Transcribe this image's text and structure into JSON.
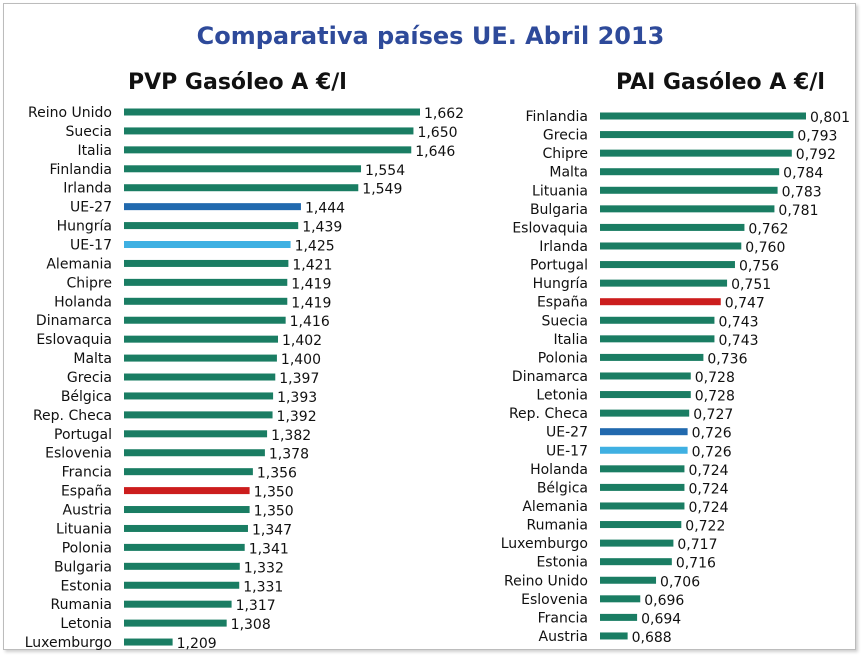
{
  "title": "Comparativa países UE. Abril 2013",
  "colors": {
    "default": "#1a7d63",
    "spain": "#cc1d1d",
    "ue27": "#2169ae",
    "ue17": "#3fb0e2"
  },
  "chart_data": [
    {
      "type": "bar",
      "orientation": "horizontal",
      "title": "PVP Gasóleo A €/l",
      "xlim": [
        1.12,
        1.662
      ],
      "categories": [
        "Reino Unido",
        "Suecia",
        "Italia",
        "Finlandia",
        "Irlanda",
        "UE-27",
        "Hungría",
        "UE-17",
        "Alemania",
        "Chipre",
        "Holanda",
        "Dinamarca",
        "Eslovaquia",
        "Malta",
        "Grecia",
        "Bélgica",
        "Rep. Checa",
        "Portugal",
        "Eslovenia",
        "Francia",
        "España",
        "Austria",
        "Lituania",
        "Polonia",
        "Bulgaria",
        "Estonia",
        "Rumania",
        "Letonia",
        "Luxemburgo"
      ],
      "values": [
        1.662,
        1.65,
        1.646,
        1.554,
        1.549,
        1.444,
        1.439,
        1.425,
        1.421,
        1.419,
        1.419,
        1.416,
        1.402,
        1.4,
        1.397,
        1.393,
        1.392,
        1.382,
        1.378,
        1.356,
        1.35,
        1.35,
        1.347,
        1.341,
        1.332,
        1.331,
        1.317,
        1.308,
        1.209
      ],
      "value_labels": [
        "1,662",
        "1,650",
        "1,646",
        "1,554",
        "1,549",
        "1,444",
        "1,439",
        "1,425",
        "1,421",
        "1,419",
        "1,419",
        "1,416",
        "1,402",
        "1,400",
        "1,397",
        "1,393",
        "1,392",
        "1,382",
        "1,378",
        "1,356",
        "1,350",
        "1,350",
        "1,347",
        "1,341",
        "1,332",
        "1,331",
        "1,317",
        "1,308",
        "1,209"
      ]
    },
    {
      "type": "bar",
      "orientation": "horizontal",
      "title": "PAI Gasóleo A €/l",
      "xlim": [
        0.6705,
        0.801
      ],
      "categories": [
        "Finlandia",
        "Grecia",
        "Chipre",
        "Malta",
        "Lituania",
        "Bulgaria",
        "Eslovaquia",
        "Irlanda",
        "Portugal",
        "Hungría",
        "España",
        "Suecia",
        "Italia",
        "Polonia",
        "Dinamarca",
        "Letonia",
        "Rep. Checa",
        "UE-27",
        "UE-17",
        "Holanda",
        "Bélgica",
        "Alemania",
        "Rumania",
        "Luxemburgo",
        "Estonia",
        "Reino Unido",
        "Eslovenia",
        "Francia",
        "Austria"
      ],
      "values": [
        0.801,
        0.793,
        0.792,
        0.784,
        0.783,
        0.781,
        0.762,
        0.76,
        0.756,
        0.751,
        0.747,
        0.743,
        0.743,
        0.736,
        0.728,
        0.728,
        0.727,
        0.726,
        0.726,
        0.724,
        0.724,
        0.724,
        0.722,
        0.717,
        0.716,
        0.706,
        0.696,
        0.694,
        0.688
      ],
      "value_labels": [
        "0,801",
        "0,793",
        "0,792",
        "0,784",
        "0,783",
        "0,781",
        "0,762",
        "0,760",
        "0,756",
        "0,751",
        "0,747",
        "0,743",
        "0,743",
        "0,736",
        "0,728",
        "0,728",
        "0,727",
        "0,726",
        "0,726",
        "0,724",
        "0,724",
        "0,724",
        "0,722",
        "0,717",
        "0,716",
        "0,706",
        "0,696",
        "0,694",
        "0,688"
      ]
    }
  ]
}
